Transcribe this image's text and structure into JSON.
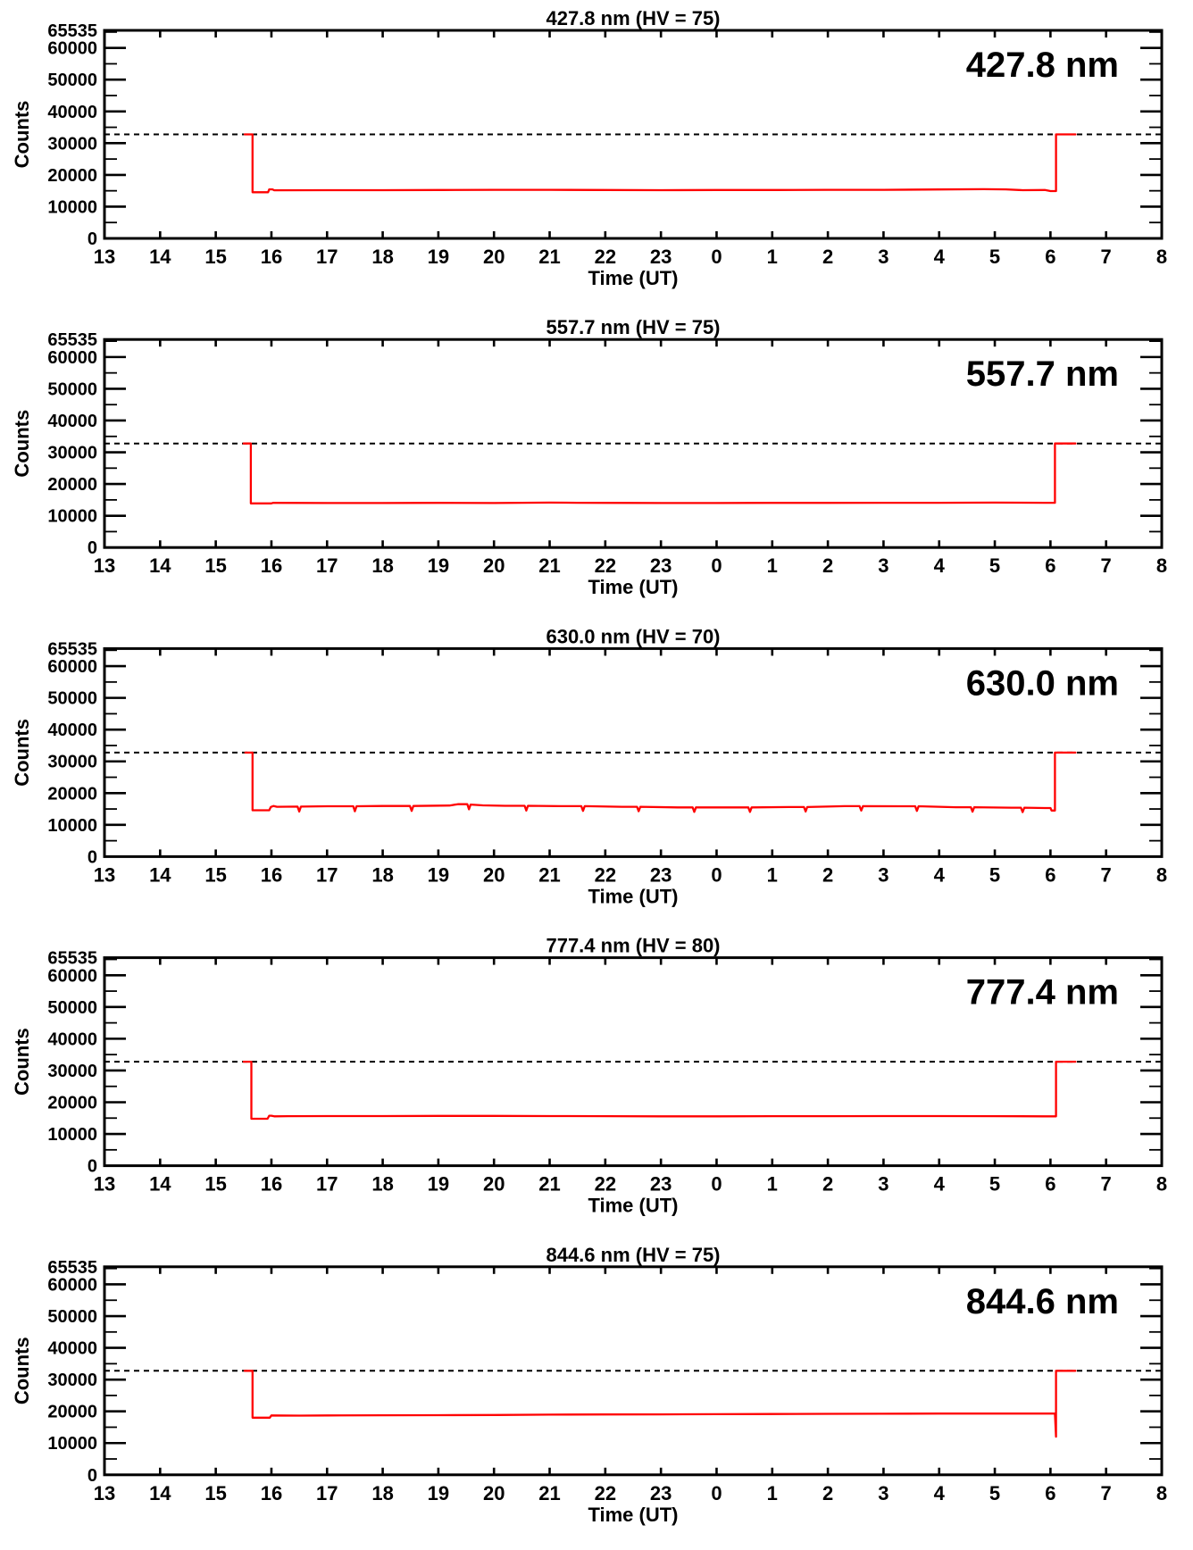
{
  "figure": {
    "background": "#ffffff",
    "axis_color": "#000000",
    "text_color": "#000000",
    "trace_color": "#ff0000",
    "dashed_line_color": "#000000",
    "ylabel": "Counts",
    "xlabel": "Time (UT)",
    "y_axis": {
      "min": 0,
      "max": 65535,
      "major_ticks": [
        10000,
        20000,
        30000,
        40000,
        50000,
        60000
      ],
      "minor_ticks": [
        5000,
        15000,
        25000,
        35000,
        45000,
        55000,
        65000
      ],
      "labeled_values": [
        0,
        10000,
        20000,
        30000,
        40000,
        50000,
        60000,
        65535
      ],
      "labels": [
        "0",
        "10000",
        "20000",
        "30000",
        "40000",
        "50000",
        "60000",
        "65535"
      ]
    },
    "x_axis": {
      "start_hour": 13,
      "end_hour": 32,
      "tick_hours": [
        13,
        14,
        15,
        16,
        17,
        18,
        19,
        20,
        21,
        22,
        23,
        24,
        25,
        26,
        27,
        28,
        29,
        30,
        31,
        32
      ],
      "tick_labels": [
        "13",
        "14",
        "15",
        "16",
        "17",
        "18",
        "19",
        "20",
        "21",
        "22",
        "23",
        "0",
        "1",
        "2",
        "3",
        "4",
        "5",
        "6",
        "7",
        "8"
      ]
    },
    "dashed_reference_counts": 32768
  },
  "chart_data": [
    {
      "type": "line",
      "title": "427.8 nm (HV = 75)",
      "corner_label": "427.8 nm",
      "wavelength_nm": 427.8,
      "hv": 75,
      "xlabel": "Time (UT)",
      "ylabel": "Counts",
      "ylim": [
        0,
        65535
      ],
      "x_range_hours_ut": [
        13,
        32
      ],
      "dashed_reference_counts": 32768,
      "series": [
        {
          "name": "counts",
          "color": "#ff0000",
          "points": [
            [
              15.52,
              32768
            ],
            [
              15.66,
              32768
            ],
            [
              15.66,
              14550
            ],
            [
              15.94,
              14550
            ],
            [
              15.96,
              15450
            ],
            [
              16.02,
              15450
            ],
            [
              16.05,
              15150
            ],
            [
              17,
              15200
            ],
            [
              18,
              15200
            ],
            [
              19,
              15250
            ],
            [
              20,
              15300
            ],
            [
              21,
              15300
            ],
            [
              22,
              15250
            ],
            [
              23,
              15200
            ],
            [
              24,
              15250
            ],
            [
              25,
              15250
            ],
            [
              26,
              15300
            ],
            [
              27,
              15300
            ],
            [
              28,
              15400
            ],
            [
              28.8,
              15500
            ],
            [
              29.2,
              15450
            ],
            [
              29.5,
              15200
            ],
            [
              29.9,
              15250
            ],
            [
              30.0,
              14900
            ],
            [
              30.1,
              14900
            ],
            [
              30.1,
              32768
            ],
            [
              30.45,
              32768
            ]
          ]
        }
      ]
    },
    {
      "type": "line",
      "title": "557.7 nm (HV = 75)",
      "corner_label": "557.7 nm",
      "wavelength_nm": 557.7,
      "hv": 75,
      "xlabel": "Time (UT)",
      "ylabel": "Counts",
      "ylim": [
        0,
        65535
      ],
      "x_range_hours_ut": [
        13,
        32
      ],
      "dashed_reference_counts": 32768,
      "series": [
        {
          "name": "counts",
          "color": "#ff0000",
          "points": [
            [
              15.5,
              32768
            ],
            [
              15.63,
              32768
            ],
            [
              15.63,
              13900
            ],
            [
              16.0,
              13900
            ],
            [
              16.03,
              14050
            ],
            [
              17,
              14000
            ],
            [
              18,
              14000
            ],
            [
              19,
              14050
            ],
            [
              20,
              14000
            ],
            [
              21,
              14150
            ],
            [
              21.5,
              14100
            ],
            [
              22,
              14050
            ],
            [
              23,
              14000
            ],
            [
              24,
              14000
            ],
            [
              25,
              14050
            ],
            [
              26,
              14050
            ],
            [
              27,
              14100
            ],
            [
              28,
              14100
            ],
            [
              29,
              14150
            ],
            [
              29.9,
              14100
            ],
            [
              30.08,
              14100
            ],
            [
              30.08,
              32768
            ],
            [
              30.45,
              32768
            ]
          ]
        }
      ]
    },
    {
      "type": "line",
      "title": "630.0 nm (HV = 70)",
      "corner_label": "630.0 nm",
      "wavelength_nm": 630.0,
      "hv": 70,
      "xlabel": "Time (UT)",
      "ylabel": "Counts",
      "ylim": [
        0,
        65535
      ],
      "x_range_hours_ut": [
        13,
        32
      ],
      "dashed_reference_counts": 32768,
      "series": [
        {
          "name": "counts",
          "color": "#ff0000",
          "points": [
            [
              15.53,
              32768
            ],
            [
              15.66,
              32768
            ],
            [
              15.66,
              14600
            ],
            [
              15.96,
              14600
            ],
            [
              15.99,
              15650
            ],
            [
              16.04,
              15950
            ],
            [
              16.1,
              15700
            ],
            [
              16.47,
              15750
            ],
            [
              16.5,
              14200
            ],
            [
              16.53,
              15750
            ],
            [
              17,
              15850
            ],
            [
              17.47,
              15850
            ],
            [
              17.5,
              14300
            ],
            [
              17.53,
              15850
            ],
            [
              18,
              15950
            ],
            [
              18.49,
              15950
            ],
            [
              18.52,
              14400
            ],
            [
              18.55,
              15950
            ],
            [
              19.2,
              16100
            ],
            [
              19.35,
              16500
            ],
            [
              19.52,
              16550
            ],
            [
              19.55,
              14900
            ],
            [
              19.58,
              16400
            ],
            [
              19.8,
              16150
            ],
            [
              20.2,
              16000
            ],
            [
              20.55,
              16000
            ],
            [
              20.58,
              14500
            ],
            [
              20.61,
              16000
            ],
            [
              21.2,
              15900
            ],
            [
              21.57,
              15900
            ],
            [
              21.6,
              14400
            ],
            [
              21.63,
              15900
            ],
            [
              22.3,
              15700
            ],
            [
              22.57,
              15700
            ],
            [
              22.6,
              14300
            ],
            [
              22.63,
              15700
            ],
            [
              23.3,
              15500
            ],
            [
              23.57,
              15500
            ],
            [
              23.6,
              14100
            ],
            [
              23.63,
              15500
            ],
            [
              24.3,
              15500
            ],
            [
              24.57,
              15500
            ],
            [
              24.6,
              14100
            ],
            [
              24.63,
              15500
            ],
            [
              25.3,
              15600
            ],
            [
              25.57,
              15600
            ],
            [
              25.6,
              14200
            ],
            [
              25.63,
              15600
            ],
            [
              26.3,
              15900
            ],
            [
              26.57,
              15900
            ],
            [
              26.6,
              14500
            ],
            [
              26.63,
              15900
            ],
            [
              27.3,
              15850
            ],
            [
              27.57,
              15850
            ],
            [
              27.6,
              14400
            ],
            [
              27.63,
              15850
            ],
            [
              28.3,
              15550
            ],
            [
              28.57,
              15550
            ],
            [
              28.6,
              14150
            ],
            [
              28.63,
              15550
            ],
            [
              29.3,
              15400
            ],
            [
              29.47,
              15400
            ],
            [
              29.5,
              14000
            ],
            [
              29.53,
              15400
            ],
            [
              29.9,
              15300
            ],
            [
              30.0,
              15300
            ],
            [
              30.02,
              14500
            ],
            [
              30.08,
              14500
            ],
            [
              30.08,
              32768
            ],
            [
              30.45,
              32768
            ]
          ]
        }
      ]
    },
    {
      "type": "line",
      "title": "777.4 nm (HV = 80)",
      "corner_label": "777.4 nm",
      "wavelength_nm": 777.4,
      "hv": 80,
      "xlabel": "Time (UT)",
      "ylabel": "Counts",
      "ylim": [
        0,
        65535
      ],
      "x_range_hours_ut": [
        13,
        32
      ],
      "dashed_reference_counts": 32768,
      "series": [
        {
          "name": "counts",
          "color": "#ff0000",
          "points": [
            [
              15.5,
              32768
            ],
            [
              15.64,
              32768
            ],
            [
              15.64,
              14800
            ],
            [
              15.93,
              14800
            ],
            [
              15.96,
              15750
            ],
            [
              16.0,
              15750
            ],
            [
              16.05,
              15550
            ],
            [
              16.3,
              15600
            ],
            [
              17,
              15650
            ],
            [
              18,
              15650
            ],
            [
              19,
              15700
            ],
            [
              20,
              15700
            ],
            [
              21,
              15650
            ],
            [
              22,
              15600
            ],
            [
              23,
              15550
            ],
            [
              24,
              15550
            ],
            [
              25,
              15600
            ],
            [
              26,
              15600
            ],
            [
              27,
              15650
            ],
            [
              28,
              15650
            ],
            [
              29,
              15600
            ],
            [
              29.9,
              15550
            ],
            [
              30.1,
              15550
            ],
            [
              30.1,
              32768
            ],
            [
              30.45,
              32768
            ]
          ]
        }
      ]
    },
    {
      "type": "line",
      "title": "844.6 nm (HV = 75)",
      "corner_label": "844.6 nm",
      "wavelength_nm": 844.6,
      "hv": 75,
      "xlabel": "Time (UT)",
      "ylabel": "Counts",
      "ylim": [
        0,
        65535
      ],
      "x_range_hours_ut": [
        13,
        32
      ],
      "dashed_reference_counts": 32768,
      "series": [
        {
          "name": "counts",
          "color": "#ff0000",
          "points": [
            [
              15.52,
              32768
            ],
            [
              15.66,
              32768
            ],
            [
              15.66,
              18000
            ],
            [
              15.97,
              18000
            ],
            [
              16.0,
              18700
            ],
            [
              16.5,
              18650
            ],
            [
              17,
              18700
            ],
            [
              18,
              18750
            ],
            [
              19,
              18800
            ],
            [
              20,
              18850
            ],
            [
              21,
              18950
            ],
            [
              22,
              19000
            ],
            [
              23,
              19050
            ],
            [
              24,
              19100
            ],
            [
              25,
              19150
            ],
            [
              26,
              19200
            ],
            [
              27,
              19250
            ],
            [
              28,
              19300
            ],
            [
              29,
              19300
            ],
            [
              29.9,
              19300
            ],
            [
              30.08,
              19300
            ],
            [
              30.1,
              12000
            ],
            [
              30.1,
              32768
            ],
            [
              30.45,
              32768
            ]
          ]
        }
      ]
    }
  ]
}
